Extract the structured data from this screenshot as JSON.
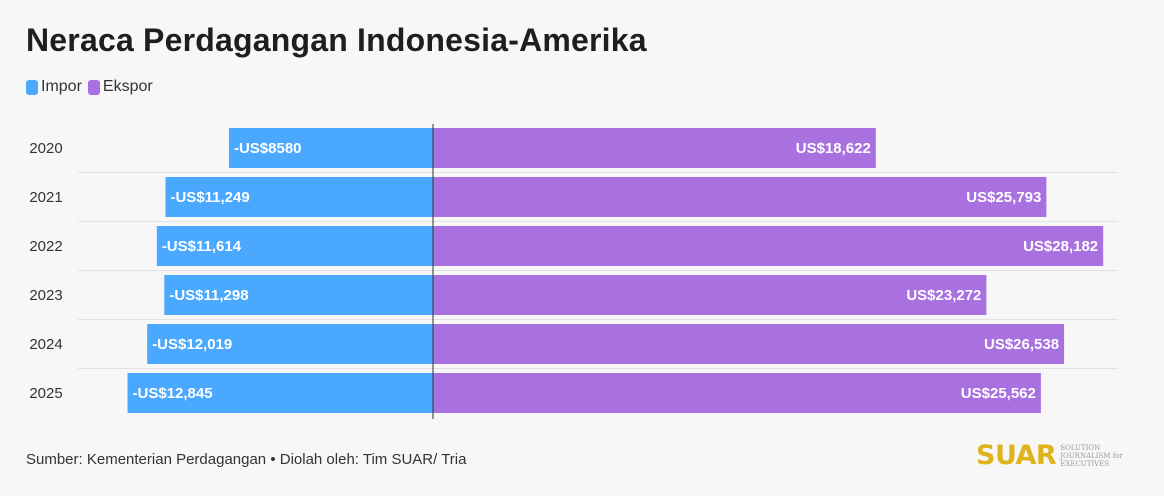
{
  "title": "Neraca Perdagangan Indonesia-Amerika",
  "source": "Sumber: Kementerian Perdagangan • Diolah oleh: Tim SUAR/ Tria",
  "logo": {
    "word": "SUAR",
    "tagline": "SOLUTION JOURNALISM for EXECUTIVES"
  },
  "chart_data": {
    "type": "bar",
    "orientation": "horizontal-diverging",
    "categories": [
      "2020",
      "2021",
      "2022",
      "2023",
      "2024",
      "2025"
    ],
    "series": [
      {
        "name": "Impor",
        "color": "#4aa8ff",
        "values": [
          -8580,
          -11249,
          -11614,
          -11298,
          -12019,
          -12845
        ],
        "labels": [
          "-US$8580",
          "-US$11,249",
          "-US$11,614",
          "-US$11,298",
          "-US$12,019",
          "-US$12,845"
        ]
      },
      {
        "name": "Ekspor",
        "color": "#a970e0",
        "values": [
          18622,
          25793,
          28182,
          23272,
          26538,
          25562
        ],
        "labels": [
          "US$18,622",
          "US$25,793",
          "US$28,182",
          "US$23,272",
          "US$26,538",
          "US$25,562"
        ]
      }
    ],
    "legend_position": "top-left",
    "grid": false
  }
}
